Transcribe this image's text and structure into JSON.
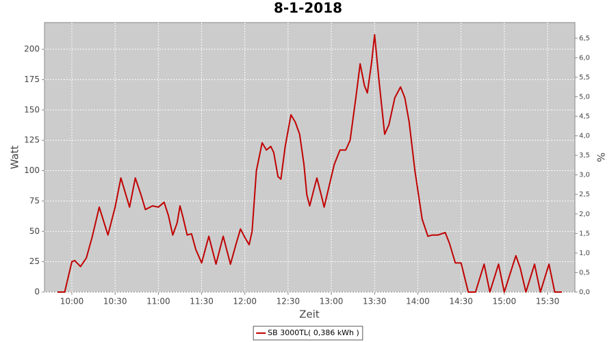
{
  "chart_data": {
    "type": "line",
    "title": "8-1-2018",
    "x_label": "Zeit",
    "y_label": "Watt",
    "y2_label": "%",
    "x": [
      "09:50",
      "09:55",
      "10:00",
      "10:02",
      "10:06",
      "10:10",
      "10:14",
      "10:19",
      "10:25",
      "10:30",
      "10:34",
      "10:40",
      "10:44",
      "10:48",
      "10:51",
      "10:56",
      "11:00",
      "11:04",
      "11:07",
      "11:10",
      "11:13",
      "11:15",
      "11:17",
      "11:20",
      "11:23",
      "11:26",
      "11:30",
      "11:35",
      "11:40",
      "11:45",
      "11:50",
      "11:54",
      "11:57",
      "12:00",
      "12:03",
      "12:05",
      "12:08",
      "12:12",
      "12:15",
      "12:18",
      "12:20",
      "12:23",
      "12:25",
      "12:28",
      "12:32",
      "12:35",
      "12:38",
      "12:41",
      "12:43",
      "12:45",
      "12:48",
      "12:50",
      "12:53",
      "12:55",
      "12:58",
      "13:02",
      "13:06",
      "13:10",
      "13:13",
      "13:17",
      "13:20",
      "13:23",
      "13:25",
      "13:28",
      "13:30",
      "13:33",
      "13:37",
      "13:40",
      "13:44",
      "13:48",
      "13:51",
      "13:54",
      "13:58",
      "14:03",
      "14:07",
      "14:10",
      "14:14",
      "14:19",
      "14:22",
      "14:26",
      "14:30",
      "14:35",
      "14:40",
      "14:46",
      "14:50",
      "14:56",
      "15:00",
      "15:04",
      "15:08",
      "15:11",
      "15:15",
      "15:21",
      "15:25",
      "15:31",
      "15:35",
      "15:40"
    ],
    "series": [
      {
        "name": "SB 3000TL( 0,386 kWh )",
        "color": "#c00000",
        "values": [
          0,
          0,
          25,
          26,
          21,
          28,
          45,
          70,
          47,
          70,
          94,
          70,
          94,
          80,
          68,
          71,
          70,
          74,
          63,
          47,
          57,
          71,
          62,
          47,
          48,
          35,
          24,
          46,
          23,
          46,
          23,
          40,
          52,
          45,
          39,
          50,
          100,
          123,
          117,
          120,
          115,
          95,
          93,
          120,
          146,
          140,
          130,
          105,
          80,
          71,
          85,
          94,
          80,
          70,
          85,
          105,
          117,
          117,
          125,
          160,
          188,
          170,
          164,
          190,
          212,
          175,
          130,
          138,
          160,
          169,
          160,
          140,
          100,
          60,
          46,
          47,
          47,
          49,
          40,
          24,
          24,
          0,
          0,
          23,
          0,
          23,
          0,
          15,
          30,
          20,
          0,
          23,
          0,
          23,
          0,
          0
        ]
      }
    ],
    "xlim": [
      "09:41",
      "15:49"
    ],
    "xticks": [
      "10:00",
      "10:30",
      "11:00",
      "11:30",
      "12:00",
      "12:30",
      "13:00",
      "13:30",
      "14:00",
      "14:30",
      "15:00",
      "15:30"
    ],
    "ylim": [
      0,
      222
    ],
    "yticks": [
      0,
      25,
      50,
      75,
      100,
      125,
      150,
      175,
      200
    ],
    "y2lim": [
      0,
      6.9
    ],
    "y2ticks": [
      {
        "value": 0,
        "label": "0,0"
      },
      {
        "value": 0.5,
        "label": "0,5"
      },
      {
        "value": 1,
        "label": "1,0"
      },
      {
        "value": 1.5,
        "label": "1,5"
      },
      {
        "value": 2,
        "label": "2,0"
      },
      {
        "value": 2.5,
        "label": "2,5"
      },
      {
        "value": 3,
        "label": "3,0"
      },
      {
        "value": 3.5,
        "label": "3,5"
      },
      {
        "value": 4,
        "label": "4,0"
      },
      {
        "value": 4.5,
        "label": "4,5"
      },
      {
        "value": 5,
        "label": "5,0"
      },
      {
        "value": 5.5,
        "label": "5,5"
      },
      {
        "value": 6,
        "label": "6,0"
      },
      {
        "value": 6.5,
        "label": "6,5"
      }
    ],
    "grid": true,
    "legend": "bottom"
  }
}
